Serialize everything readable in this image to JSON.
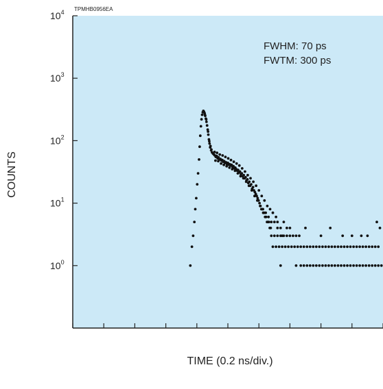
{
  "figure_id": "TPMHB0956EA",
  "annotations": [
    "FWHM: 70 ps",
    "FWTM: 300 ps"
  ],
  "colors": {
    "plot_background": "#cce9f7",
    "points": "#111111",
    "axis": "#222222"
  },
  "chart_data": {
    "type": "scatter",
    "title": "",
    "xlabel": "TIME (0.2 ns/div.)",
    "ylabel": "COUNTS",
    "yscale": "log",
    "ylim": [
      0.1,
      10000
    ],
    "xlim": [
      0,
      10
    ],
    "grid": false,
    "yticks": [
      {
        "value": 1,
        "base": "10",
        "exp": "0"
      },
      {
        "value": 10,
        "base": "10",
        "exp": "1"
      },
      {
        "value": 100,
        "base": "10",
        "exp": "2"
      },
      {
        "value": 1000,
        "base": "10",
        "exp": "3"
      },
      {
        "value": 10000,
        "base": "10",
        "exp": "4"
      }
    ],
    "xticks": [
      0,
      1,
      2,
      3,
      4,
      5,
      6,
      7,
      8,
      9,
      10
    ],
    "series": [
      {
        "name": "",
        "points": [
          [
            3.79,
            1
          ],
          [
            3.84,
            2
          ],
          [
            3.88,
            3
          ],
          [
            3.92,
            5
          ],
          [
            3.95,
            8
          ],
          [
            3.98,
            12
          ],
          [
            4.01,
            20
          ],
          [
            4.04,
            30
          ],
          [
            4.07,
            50
          ],
          [
            4.09,
            80
          ],
          [
            4.11,
            120
          ],
          [
            4.13,
            170
          ],
          [
            4.15,
            220
          ],
          [
            4.17,
            260
          ],
          [
            4.19,
            285
          ],
          [
            4.21,
            300
          ],
          [
            4.23,
            290
          ],
          [
            4.25,
            275
          ],
          [
            4.27,
            250
          ],
          [
            4.29,
            225
          ],
          [
            4.31,
            200
          ],
          [
            4.33,
            175
          ],
          [
            4.35,
            150
          ],
          [
            4.37,
            125
          ],
          [
            4.39,
            105
          ],
          [
            4.41,
            90
          ],
          [
            4.43,
            78
          ],
          [
            4.46,
            70
          ],
          [
            4.49,
            65
          ],
          [
            4.52,
            62
          ],
          [
            4.3,
            220
          ],
          [
            4.26,
            260
          ],
          [
            4.36,
            140
          ],
          [
            4.4,
            98
          ],
          [
            4.44,
            82
          ],
          [
            4.47,
            72
          ],
          [
            4.55,
            60
          ],
          [
            4.58,
            58
          ],
          [
            4.61,
            55
          ],
          [
            4.64,
            57
          ],
          [
            4.67,
            52
          ],
          [
            4.7,
            54
          ],
          [
            4.73,
            50
          ],
          [
            4.76,
            51
          ],
          [
            4.79,
            48
          ],
          [
            4.82,
            49
          ],
          [
            4.85,
            46
          ],
          [
            4.88,
            47
          ],
          [
            4.91,
            44
          ],
          [
            4.94,
            45
          ],
          [
            4.97,
            42
          ],
          [
            5.0,
            44
          ],
          [
            5.03,
            41
          ],
          [
            5.06,
            42
          ],
          [
            5.09,
            40
          ],
          [
            5.12,
            41
          ],
          [
            5.15,
            38
          ],
          [
            5.18,
            39
          ],
          [
            5.21,
            36
          ],
          [
            5.24,
            37
          ],
          [
            5.27,
            35
          ],
          [
            5.3,
            33
          ],
          [
            5.33,
            34
          ],
          [
            5.36,
            31
          ],
          [
            5.39,
            32
          ],
          [
            5.42,
            29
          ],
          [
            5.45,
            30
          ],
          [
            5.48,
            27
          ],
          [
            5.51,
            28
          ],
          [
            5.54,
            25
          ],
          [
            5.57,
            26
          ],
          [
            5.6,
            23
          ],
          [
            5.63,
            24
          ],
          [
            5.66,
            21
          ],
          [
            5.69,
            22
          ],
          [
            5.72,
            19
          ],
          [
            5.75,
            20
          ],
          [
            5.78,
            17
          ],
          [
            5.81,
            18
          ],
          [
            5.84,
            16
          ],
          [
            5.87,
            15
          ],
          [
            5.9,
            14
          ],
          [
            5.93,
            13
          ],
          [
            5.96,
            12
          ],
          [
            5.99,
            11
          ],
          [
            6.02,
            10
          ],
          [
            6.05,
            9
          ],
          [
            6.08,
            8
          ],
          [
            6.11,
            8
          ],
          [
            6.14,
            7
          ],
          [
            6.17,
            7
          ],
          [
            6.2,
            6
          ],
          [
            6.23,
            6
          ],
          [
            6.26,
            5
          ],
          [
            6.29,
            5
          ],
          [
            6.32,
            5
          ],
          [
            6.35,
            4
          ],
          [
            6.38,
            4
          ],
          [
            4.57,
            66
          ],
          [
            4.6,
            48
          ],
          [
            4.65,
            64
          ],
          [
            4.69,
            47
          ],
          [
            4.74,
            60
          ],
          [
            4.78,
            43
          ],
          [
            4.83,
            58
          ],
          [
            4.87,
            41
          ],
          [
            4.92,
            55
          ],
          [
            4.96,
            39
          ],
          [
            5.01,
            52
          ],
          [
            5.05,
            37
          ],
          [
            5.1,
            49
          ],
          [
            5.14,
            35
          ],
          [
            5.19,
            46
          ],
          [
            5.23,
            33
          ],
          [
            5.28,
            43
          ],
          [
            5.32,
            30
          ],
          [
            5.37,
            40
          ],
          [
            5.41,
            27
          ],
          [
            5.46,
            36
          ],
          [
            5.5,
            25
          ],
          [
            5.55,
            32
          ],
          [
            5.59,
            22
          ],
          [
            5.64,
            28
          ],
          [
            5.68,
            19
          ],
          [
            5.73,
            25
          ],
          [
            5.77,
            16
          ],
          [
            5.82,
            22
          ],
          [
            5.86,
            13
          ],
          [
            5.91,
            19
          ],
          [
            5.95,
            11
          ],
          [
            6.0,
            16
          ],
          [
            6.04,
            9
          ],
          [
            6.09,
            13
          ],
          [
            6.13,
            8
          ],
          [
            6.18,
            11
          ],
          [
            6.22,
            7
          ],
          [
            6.27,
            9
          ],
          [
            6.31,
            6
          ],
          [
            6.36,
            8
          ],
          [
            6.4,
            5
          ],
          [
            6.45,
            7
          ],
          [
            6.5,
            5
          ],
          [
            6.55,
            6
          ],
          [
            6.6,
            4
          ],
          [
            6.6,
            5
          ],
          [
            6.7,
            4
          ],
          [
            6.8,
            5
          ],
          [
            6.9,
            4
          ],
          [
            7.0,
            4
          ],
          [
            6.75,
            3
          ],
          [
            6.4,
            3
          ],
          [
            6.5,
            3
          ],
          [
            6.6,
            3
          ],
          [
            6.7,
            3
          ],
          [
            6.8,
            3
          ],
          [
            6.9,
            3
          ],
          [
            7.0,
            3
          ],
          [
            7.1,
            3
          ],
          [
            7.2,
            3
          ],
          [
            7.3,
            3
          ],
          [
            6.45,
            2
          ],
          [
            6.55,
            2
          ],
          [
            6.65,
            2
          ],
          [
            6.75,
            2
          ],
          [
            6.85,
            2
          ],
          [
            6.95,
            2
          ],
          [
            7.05,
            2
          ],
          [
            7.15,
            2
          ],
          [
            7.25,
            2
          ],
          [
            7.35,
            2
          ],
          [
            7.45,
            2
          ],
          [
            7.55,
            2
          ],
          [
            7.65,
            2
          ],
          [
            7.75,
            2
          ],
          [
            7.85,
            2
          ],
          [
            7.95,
            2
          ],
          [
            8.05,
            2
          ],
          [
            8.15,
            2
          ],
          [
            8.25,
            2
          ],
          [
            8.35,
            2
          ],
          [
            8.45,
            2
          ],
          [
            8.55,
            2
          ],
          [
            8.65,
            2
          ],
          [
            8.75,
            2
          ],
          [
            8.85,
            2
          ],
          [
            8.95,
            2
          ],
          [
            9.05,
            2
          ],
          [
            9.15,
            2
          ],
          [
            9.25,
            2
          ],
          [
            9.35,
            2
          ],
          [
            9.45,
            2
          ],
          [
            9.55,
            2
          ],
          [
            9.65,
            2
          ],
          [
            9.75,
            2
          ],
          [
            9.85,
            2
          ],
          [
            6.7,
            1
          ],
          [
            7.2,
            1
          ],
          [
            7.35,
            1
          ],
          [
            7.45,
            1
          ],
          [
            7.55,
            1
          ],
          [
            7.65,
            1
          ],
          [
            7.75,
            1
          ],
          [
            7.85,
            1
          ],
          [
            7.95,
            1
          ],
          [
            8.05,
            1
          ],
          [
            8.15,
            1
          ],
          [
            8.25,
            1
          ],
          [
            8.35,
            1
          ],
          [
            8.45,
            1
          ],
          [
            8.55,
            1
          ],
          [
            8.65,
            1
          ],
          [
            8.75,
            1
          ],
          [
            8.85,
            1
          ],
          [
            8.95,
            1
          ],
          [
            9.05,
            1
          ],
          [
            9.15,
            1
          ],
          [
            9.25,
            1
          ],
          [
            9.35,
            1
          ],
          [
            9.45,
            1
          ],
          [
            9.55,
            1
          ],
          [
            9.65,
            1
          ],
          [
            9.75,
            1
          ],
          [
            9.85,
            1
          ],
          [
            9.95,
            1
          ],
          [
            7.5,
            4
          ],
          [
            8.3,
            4
          ],
          [
            9.0,
            3
          ],
          [
            9.5,
            3
          ],
          [
            9.8,
            5
          ],
          [
            9.9,
            4
          ],
          [
            8.7,
            3
          ],
          [
            9.3,
            3
          ],
          [
            8.0,
            3
          ]
        ]
      }
    ]
  }
}
